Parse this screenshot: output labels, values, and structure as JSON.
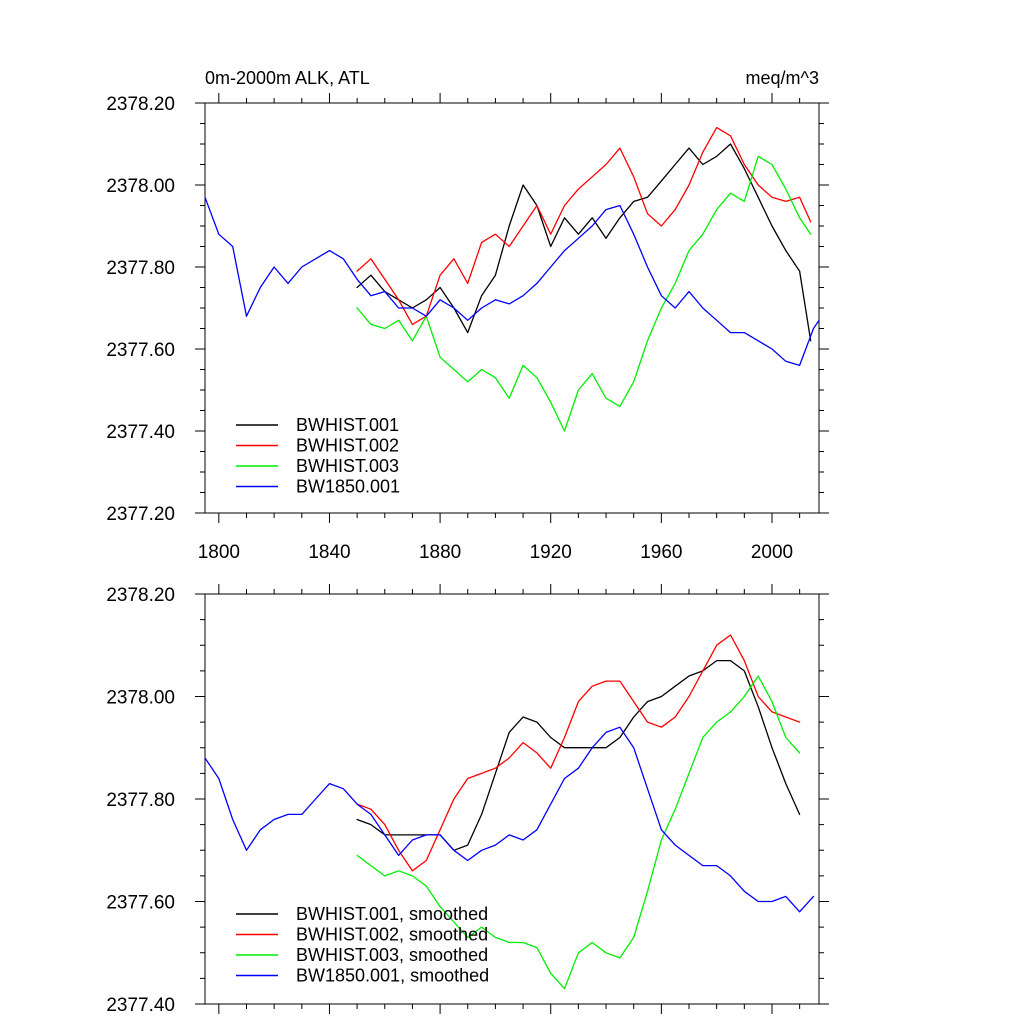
{
  "chart_data": [
    {
      "type": "line",
      "title": "0m-2000m ALK, ATL",
      "units": "meq/m^3",
      "xlabel": "",
      "ylabel": "",
      "xlim": [
        1795,
        2017
      ],
      "ylim": [
        2377.2,
        2378.2
      ],
      "xticks": [
        1800,
        1840,
        1880,
        1920,
        1960,
        2000
      ],
      "xtick_labels": [
        "1800",
        "1840",
        "1880",
        "1920",
        "1960",
        "2000"
      ],
      "yticks": [
        2377.2,
        2377.4,
        2377.6,
        2377.8,
        2378.0,
        2378.2
      ],
      "ytick_labels": [
        "2377.20",
        "2377.40",
        "2377.60",
        "2377.80",
        "2378.00",
        "2378.20"
      ],
      "legend_position": "bottom-left",
      "series": [
        {
          "name": "BWHIST.001",
          "color": "#000000",
          "x": [
            1850,
            1855,
            1860,
            1865,
            1870,
            1875,
            1880,
            1885,
            1890,
            1895,
            1900,
            1905,
            1910,
            1915,
            1920,
            1925,
            1930,
            1935,
            1940,
            1945,
            1950,
            1955,
            1960,
            1965,
            1970,
            1975,
            1980,
            1985,
            1990,
            1995,
            2000,
            2005,
            2010,
            2014
          ],
          "y": [
            2377.75,
            2377.78,
            2377.74,
            2377.72,
            2377.7,
            2377.72,
            2377.75,
            2377.7,
            2377.64,
            2377.73,
            2377.78,
            2377.9,
            2378.0,
            2377.95,
            2377.85,
            2377.92,
            2377.88,
            2377.92,
            2377.87,
            2377.92,
            2377.96,
            2377.97,
            2378.01,
            2378.05,
            2378.09,
            2378.05,
            2378.07,
            2378.1,
            2378.04,
            2377.97,
            2377.9,
            2377.84,
            2377.79,
            2377.62
          ]
        },
        {
          "name": "BWHIST.002",
          "color": "#ff0000",
          "x": [
            1850,
            1855,
            1860,
            1865,
            1870,
            1875,
            1880,
            1885,
            1890,
            1895,
            1900,
            1905,
            1910,
            1915,
            1920,
            1925,
            1930,
            1935,
            1940,
            1945,
            1950,
            1955,
            1960,
            1965,
            1970,
            1975,
            1980,
            1985,
            1990,
            1995,
            2000,
            2005,
            2010,
            2014
          ],
          "y": [
            2377.79,
            2377.82,
            2377.77,
            2377.72,
            2377.66,
            2377.68,
            2377.78,
            2377.82,
            2377.76,
            2377.86,
            2377.88,
            2377.85,
            2377.9,
            2377.95,
            2377.88,
            2377.95,
            2377.99,
            2378.02,
            2378.05,
            2378.09,
            2378.02,
            2377.93,
            2377.9,
            2377.94,
            2378.0,
            2378.08,
            2378.14,
            2378.12,
            2378.05,
            2378.0,
            2377.97,
            2377.96,
            2377.97,
            2377.91
          ]
        },
        {
          "name": "BWHIST.003",
          "color": "#00ee00",
          "x": [
            1850,
            1855,
            1860,
            1865,
            1870,
            1875,
            1880,
            1885,
            1890,
            1895,
            1900,
            1905,
            1910,
            1915,
            1920,
            1925,
            1930,
            1935,
            1940,
            1945,
            1950,
            1955,
            1960,
            1965,
            1970,
            1975,
            1980,
            1985,
            1990,
            1995,
            2000,
            2005,
            2010,
            2014
          ],
          "y": [
            2377.7,
            2377.66,
            2377.65,
            2377.67,
            2377.62,
            2377.68,
            2377.58,
            2377.55,
            2377.52,
            2377.55,
            2377.53,
            2377.48,
            2377.56,
            2377.53,
            2377.47,
            2377.4,
            2377.5,
            2377.54,
            2377.48,
            2377.46,
            2377.52,
            2377.62,
            2377.7,
            2377.76,
            2377.84,
            2377.88,
            2377.94,
            2377.98,
            2377.96,
            2378.07,
            2378.05,
            2377.99,
            2377.92,
            2377.88
          ]
        },
        {
          "name": "BW1850.001",
          "color": "#0000ff",
          "x": [
            1795,
            1800,
            1805,
            1810,
            1815,
            1820,
            1825,
            1830,
            1835,
            1840,
            1845,
            1850,
            1855,
            1860,
            1865,
            1870,
            1875,
            1880,
            1885,
            1890,
            1895,
            1900,
            1905,
            1910,
            1915,
            1920,
            1925,
            1930,
            1935,
            1940,
            1945,
            1950,
            1955,
            1960,
            1965,
            1970,
            1975,
            1980,
            1985,
            1990,
            1995,
            2000,
            2005,
            2010,
            2015,
            2017
          ],
          "y": [
            2377.97,
            2377.88,
            2377.85,
            2377.68,
            2377.75,
            2377.8,
            2377.76,
            2377.8,
            2377.82,
            2377.84,
            2377.82,
            2377.77,
            2377.73,
            2377.74,
            2377.7,
            2377.7,
            2377.68,
            2377.72,
            2377.7,
            2377.67,
            2377.7,
            2377.72,
            2377.71,
            2377.73,
            2377.76,
            2377.8,
            2377.84,
            2377.87,
            2377.9,
            2377.94,
            2377.95,
            2377.88,
            2377.8,
            2377.73,
            2377.7,
            2377.74,
            2377.7,
            2377.67,
            2377.64,
            2377.64,
            2377.62,
            2377.6,
            2377.57,
            2377.56,
            2377.65,
            2377.67
          ]
        }
      ]
    },
    {
      "type": "line",
      "title": "",
      "xlabel": "",
      "ylabel": "",
      "xlim": [
        1795,
        2017
      ],
      "ylim": [
        2377.4,
        2378.2
      ],
      "xticks": [
        1800,
        1840,
        1880,
        1920,
        1960,
        2000
      ],
      "yticks": [
        2377.4,
        2377.6,
        2377.8,
        2378.0,
        2378.2
      ],
      "ytick_labels": [
        "2377.40",
        "2377.60",
        "2377.80",
        "2378.00",
        "2378.20"
      ],
      "legend_position": "bottom-left",
      "series": [
        {
          "name": "BWHIST.001, smoothed",
          "color": "#000000",
          "x": [
            1850,
            1855,
            1860,
            1865,
            1870,
            1875,
            1880,
            1885,
            1890,
            1895,
            1900,
            1905,
            1910,
            1915,
            1920,
            1925,
            1930,
            1935,
            1940,
            1945,
            1950,
            1955,
            1960,
            1965,
            1970,
            1975,
            1980,
            1985,
            1990,
            1995,
            2000,
            2005,
            2010
          ],
          "y": [
            2377.76,
            2377.75,
            2377.73,
            2377.73,
            2377.73,
            2377.73,
            2377.73,
            2377.7,
            2377.71,
            2377.77,
            2377.85,
            2377.93,
            2377.96,
            2377.95,
            2377.92,
            2377.9,
            2377.9,
            2377.9,
            2377.9,
            2377.92,
            2377.96,
            2377.99,
            2378.0,
            2378.02,
            2378.04,
            2378.05,
            2378.07,
            2378.07,
            2378.05,
            2377.98,
            2377.9,
            2377.83,
            2377.77
          ]
        },
        {
          "name": "BWHIST.002, smoothed",
          "color": "#ff0000",
          "x": [
            1850,
            1855,
            1860,
            1865,
            1870,
            1875,
            1880,
            1885,
            1890,
            1895,
            1900,
            1905,
            1910,
            1915,
            1920,
            1925,
            1930,
            1935,
            1940,
            1945,
            1950,
            1955,
            1960,
            1965,
            1970,
            1975,
            1980,
            1985,
            1990,
            1995,
            2000,
            2005,
            2010
          ],
          "y": [
            2377.79,
            2377.78,
            2377.75,
            2377.7,
            2377.66,
            2377.68,
            2377.74,
            2377.8,
            2377.84,
            2377.85,
            2377.86,
            2377.88,
            2377.91,
            2377.89,
            2377.86,
            2377.92,
            2377.99,
            2378.02,
            2378.03,
            2378.03,
            2377.99,
            2377.95,
            2377.94,
            2377.96,
            2378.0,
            2378.05,
            2378.1,
            2378.12,
            2378.07,
            2378.0,
            2377.97,
            2377.96,
            2377.95
          ]
        },
        {
          "name": "BWHIST.003, smoothed",
          "color": "#00ee00",
          "x": [
            1850,
            1855,
            1860,
            1865,
            1870,
            1875,
            1880,
            1885,
            1890,
            1895,
            1900,
            1905,
            1910,
            1915,
            1920,
            1925,
            1930,
            1935,
            1940,
            1945,
            1950,
            1955,
            1960,
            1965,
            1970,
            1975,
            1980,
            1985,
            1990,
            1995,
            2000,
            2005,
            2010
          ],
          "y": [
            2377.69,
            2377.67,
            2377.65,
            2377.66,
            2377.65,
            2377.63,
            2377.59,
            2377.56,
            2377.53,
            2377.55,
            2377.53,
            2377.52,
            2377.52,
            2377.51,
            2377.46,
            2377.43,
            2377.5,
            2377.52,
            2377.5,
            2377.49,
            2377.53,
            2377.62,
            2377.72,
            2377.78,
            2377.85,
            2377.92,
            2377.95,
            2377.97,
            2378.0,
            2378.04,
            2377.99,
            2377.92,
            2377.89
          ]
        },
        {
          "name": "BW1850.001, smoothed",
          "color": "#0000ff",
          "x": [
            1795,
            1800,
            1805,
            1810,
            1815,
            1820,
            1825,
            1830,
            1835,
            1840,
            1845,
            1850,
            1855,
            1860,
            1865,
            1870,
            1875,
            1880,
            1885,
            1890,
            1895,
            1900,
            1905,
            1910,
            1915,
            1920,
            1925,
            1930,
            1935,
            1940,
            1945,
            1950,
            1955,
            1960,
            1965,
            1970,
            1975,
            1980,
            1985,
            1990,
            1995,
            2000,
            2005,
            2010,
            2015
          ],
          "y": [
            2377.88,
            2377.84,
            2377.76,
            2377.7,
            2377.74,
            2377.76,
            2377.77,
            2377.77,
            2377.8,
            2377.83,
            2377.82,
            2377.79,
            2377.77,
            2377.73,
            2377.69,
            2377.72,
            2377.73,
            2377.73,
            2377.7,
            2377.68,
            2377.7,
            2377.71,
            2377.73,
            2377.72,
            2377.74,
            2377.79,
            2377.84,
            2377.86,
            2377.9,
            2377.93,
            2377.94,
            2377.9,
            2377.82,
            2377.74,
            2377.71,
            2377.69,
            2377.67,
            2377.67,
            2377.65,
            2377.62,
            2377.6,
            2377.6,
            2377.61,
            2377.58,
            2377.61
          ]
        }
      ]
    }
  ]
}
